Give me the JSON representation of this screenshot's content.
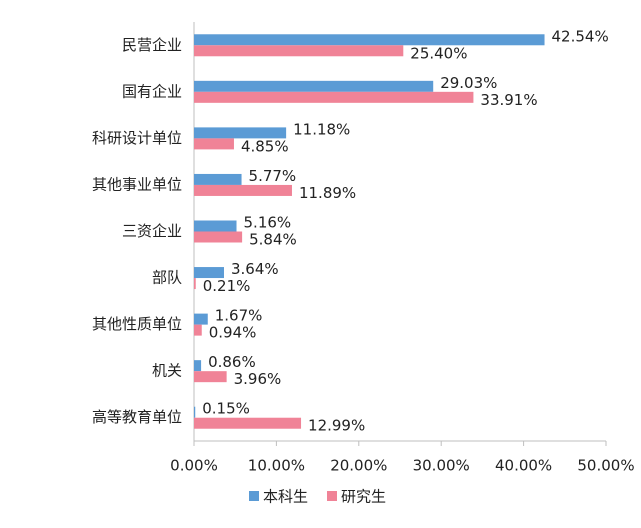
{
  "chart_data": {
    "type": "bar",
    "orientation": "horizontal",
    "categories": [
      "民营企业",
      "国有企业",
      "科研设计单位",
      "其他事业单位",
      "三资企业",
      "部队",
      "其他性质单位",
      "机关",
      "高等教育单位"
    ],
    "series": [
      {
        "name": "本科生",
        "color": "#5b9bd5",
        "values": [
          42.54,
          29.03,
          11.18,
          5.77,
          5.16,
          3.64,
          1.67,
          0.86,
          0.15
        ],
        "value_labels": [
          "42.54%",
          "29.03%",
          "11.18%",
          "5.77%",
          "5.16%",
          "3.64%",
          "1.67%",
          "0.86%",
          "0.15%"
        ]
      },
      {
        "name": "研究生",
        "color": "#f08397",
        "values": [
          25.4,
          33.91,
          4.85,
          11.89,
          5.84,
          0.21,
          0.94,
          3.96,
          12.99
        ],
        "value_labels": [
          "25.40%",
          "33.91%",
          "4.85%",
          "11.89%",
          "5.84%",
          "0.21%",
          "0.94%",
          "3.96%",
          "12.99%"
        ]
      }
    ],
    "xlim": [
      0,
      50
    ],
    "xticks": [
      {
        "value": 0,
        "label": "0.00%"
      },
      {
        "value": 10,
        "label": "10.00%"
      },
      {
        "value": 20,
        "label": "20.00%"
      },
      {
        "value": 30,
        "label": "30.00%"
      },
      {
        "value": 40,
        "label": "40.00%"
      },
      {
        "value": 50,
        "label": "50.00%"
      }
    ],
    "legend": "bottom"
  }
}
